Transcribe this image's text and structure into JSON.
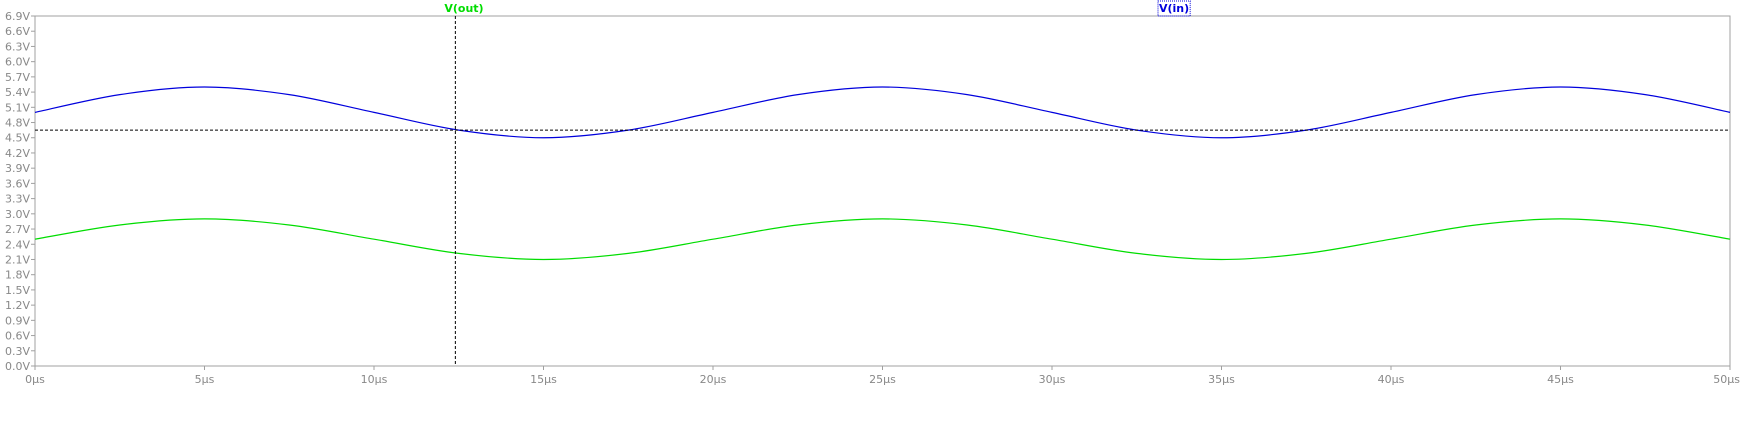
{
  "chart_data": {
    "type": "line",
    "xlim": [
      0,
      50
    ],
    "ylim": [
      0,
      6.9
    ],
    "x_tick_values": [
      0,
      5,
      10,
      15,
      20,
      25,
      30,
      35,
      40,
      45,
      50
    ],
    "x_tick_labels": [
      "0µs",
      "5µs",
      "10µs",
      "15µs",
      "20µs",
      "25µs",
      "30µs",
      "35µs",
      "40µs",
      "45µs",
      "50µs"
    ],
    "y_tick_values": [
      0,
      0.3,
      0.6,
      0.9,
      1.2,
      1.5,
      1.8,
      2.1,
      2.4,
      2.7,
      3.0,
      3.3,
      3.6,
      3.9,
      4.2,
      4.5,
      4.8,
      5.1,
      5.4,
      5.7,
      6.0,
      6.3,
      6.6,
      6.9
    ],
    "y_tick_labels": [
      "0.0V",
      "0.3V",
      "0.6V",
      "0.9V",
      "1.2V",
      "1.5V",
      "1.8V",
      "2.1V",
      "2.4V",
      "2.7V",
      "3.0V",
      "3.3V",
      "3.6V",
      "3.9V",
      "4.2V",
      "4.5V",
      "4.8V",
      "5.1V",
      "5.4V",
      "5.7V",
      "6.0V",
      "6.3V",
      "6.6V",
      "6.9V"
    ],
    "series": [
      {
        "name": "V(in)",
        "color": "#0000dd",
        "x": [
          0,
          2.5,
          5,
          7.5,
          10,
          12.5,
          15,
          17.5,
          20,
          22.5,
          25,
          27.5,
          30,
          32.5,
          35,
          37.5,
          40,
          42.5,
          45,
          47.5,
          50
        ],
        "y": [
          5.0,
          5.35,
          5.5,
          5.35,
          5.0,
          4.65,
          4.5,
          4.65,
          5.0,
          5.35,
          5.5,
          5.35,
          5.0,
          4.65,
          4.5,
          4.65,
          5.0,
          5.35,
          5.5,
          5.35,
          5.0
        ]
      },
      {
        "name": "V(out)",
        "color": "#00dd00",
        "x": [
          0,
          2.5,
          5,
          7.5,
          10,
          12.5,
          15,
          17.5,
          20,
          22.5,
          25,
          27.5,
          30,
          32.5,
          35,
          37.5,
          40,
          42.5,
          45,
          47.5,
          50
        ],
        "y": [
          2.5,
          2.78,
          2.9,
          2.78,
          2.5,
          2.22,
          2.1,
          2.22,
          2.5,
          2.78,
          2.9,
          2.78,
          2.5,
          2.22,
          2.1,
          2.22,
          2.5,
          2.78,
          2.9,
          2.78,
          2.5
        ]
      }
    ],
    "cursors": {
      "vertical_x": 12.4,
      "horizontal_y": 4.65
    },
    "grid": false,
    "legend_placement": "top",
    "colors": {
      "frame": "#a0a0a0",
      "tick_label": "#888888",
      "cursor": "#000000"
    }
  }
}
